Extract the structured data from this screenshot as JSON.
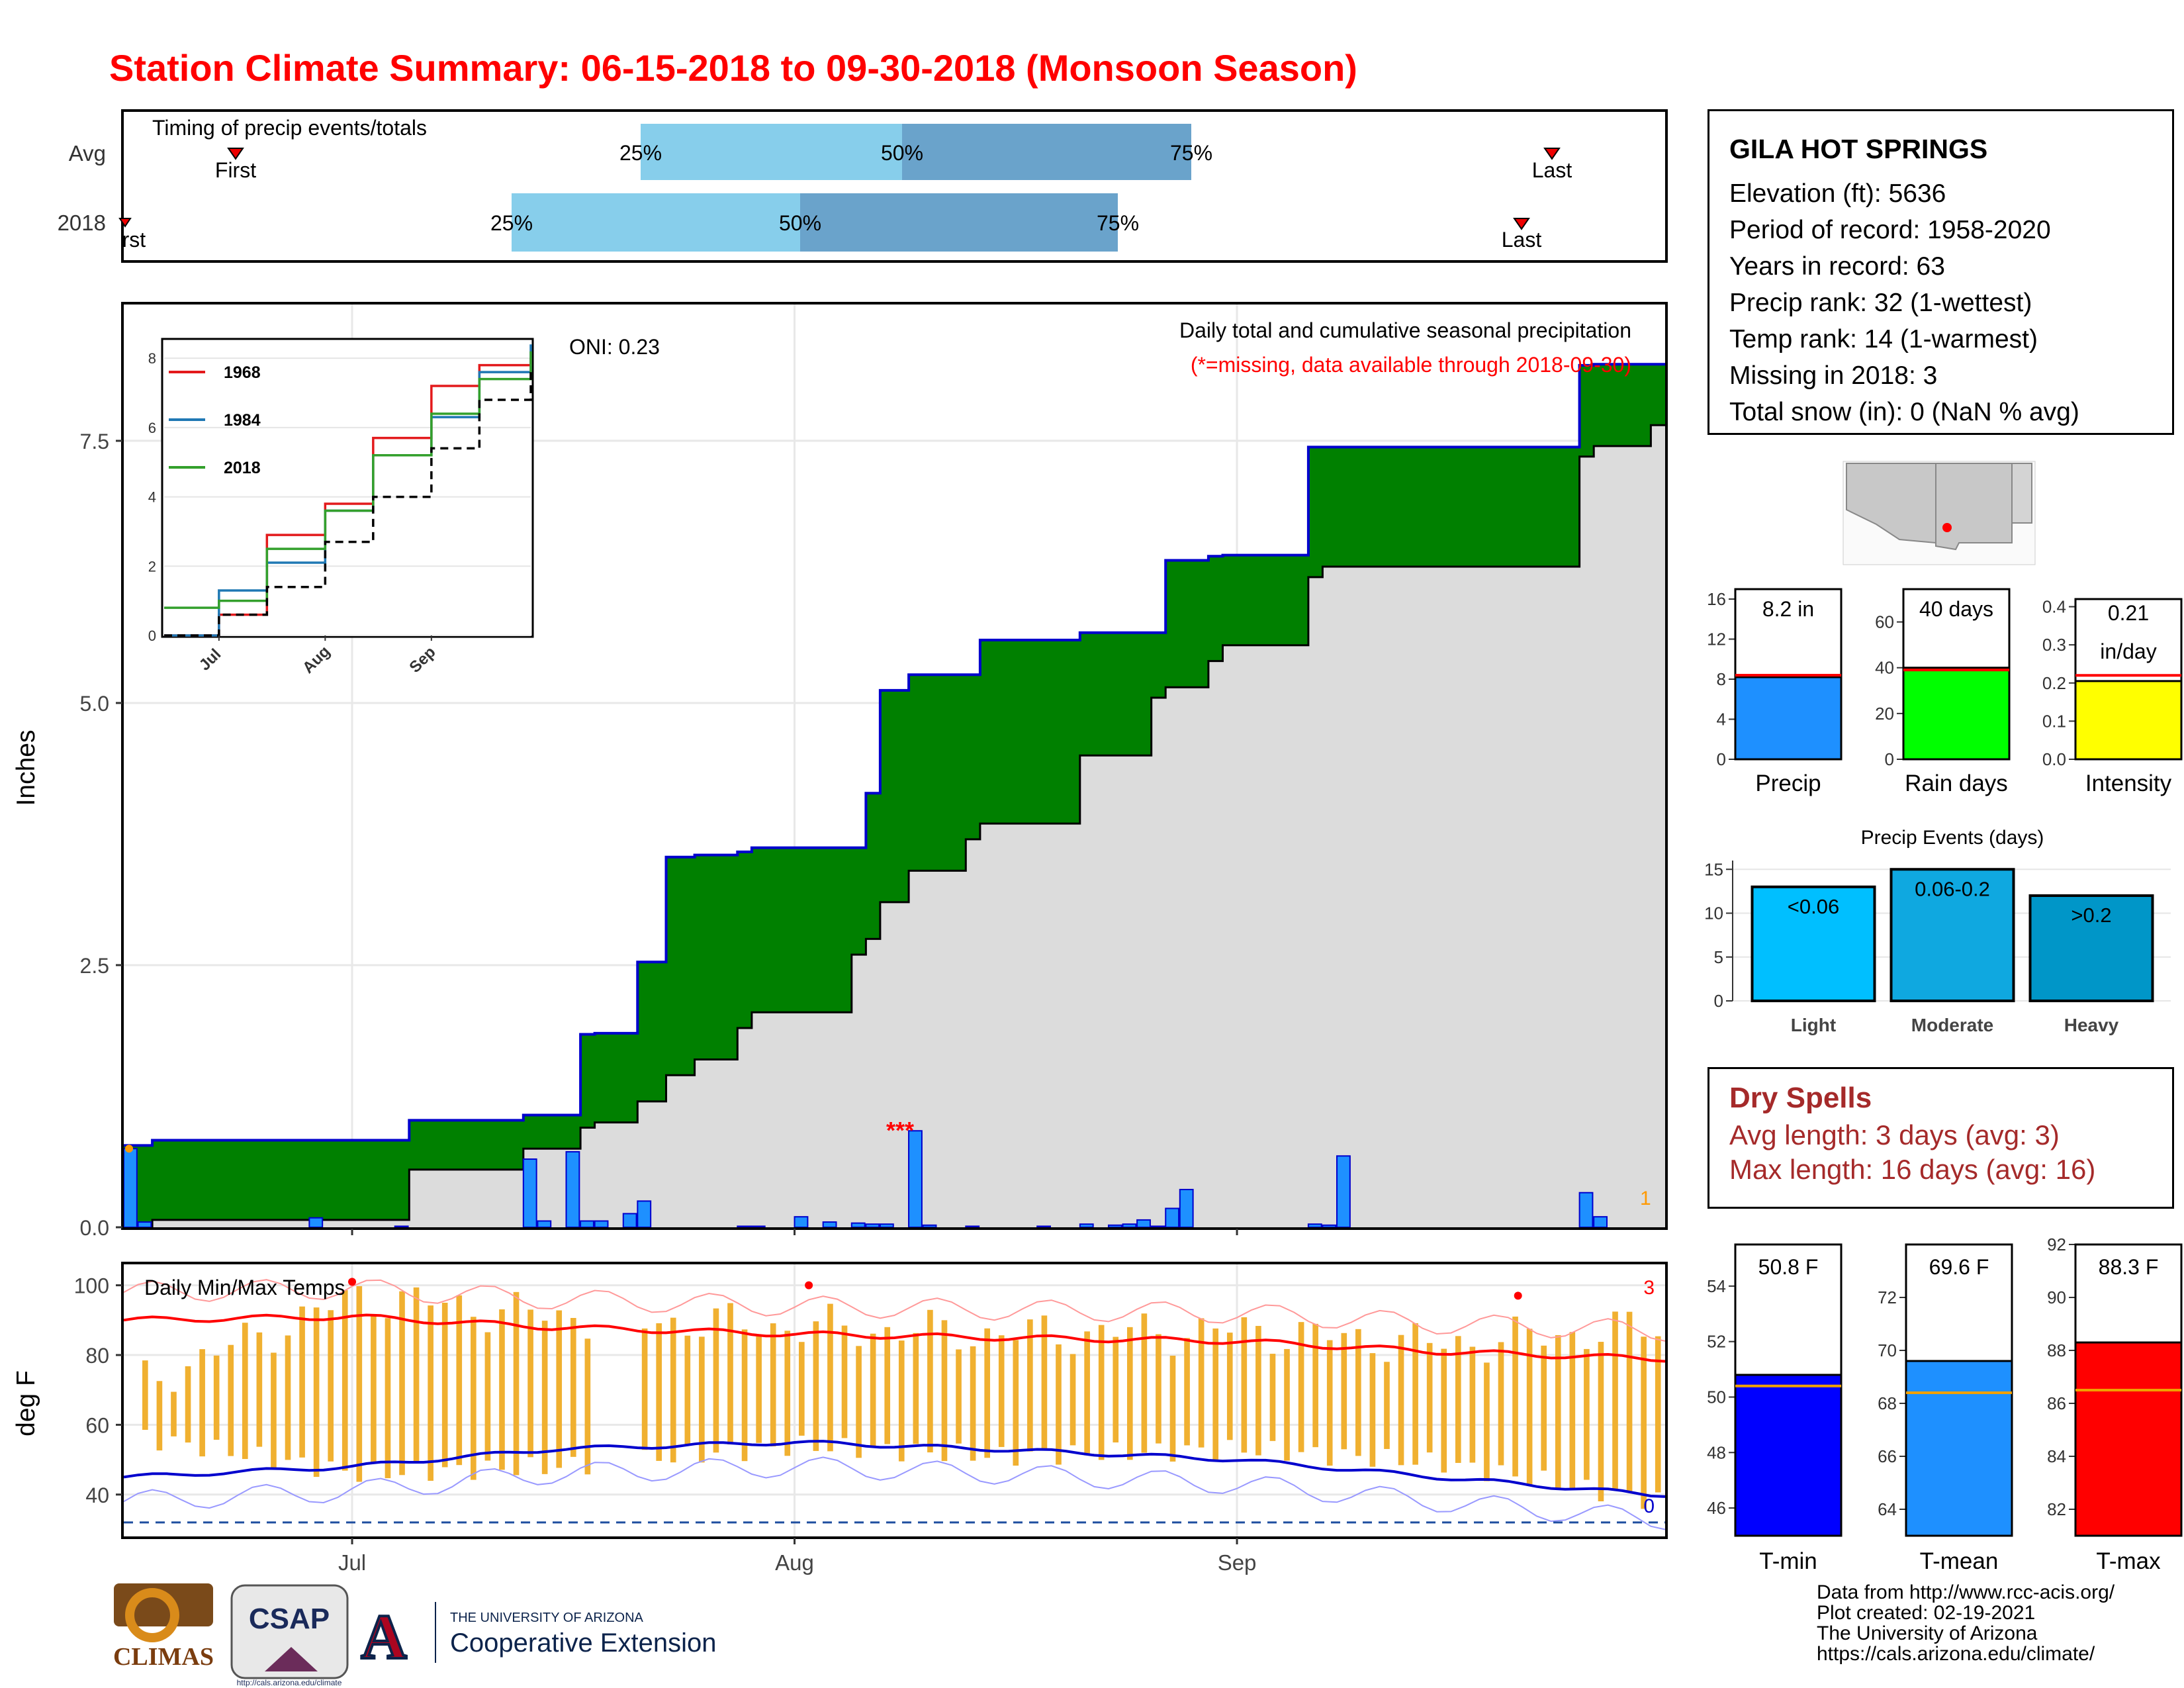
{
  "title": "Station Climate Summary: 06-15-2018 to 09-30-2018 (Monsoon Season)",
  "timing": {
    "label": "Timing of precip events/totals",
    "rows": [
      {
        "name": "Avg",
        "first_label": "First",
        "last_label": "Last",
        "q25": "25%",
        "q50": "50%",
        "q75": "75%"
      },
      {
        "name": "2018",
        "first_label": "First",
        "last_label": "Last",
        "q25": "25%",
        "q50": "50%",
        "q75": "75%"
      }
    ]
  },
  "precip_panel": {
    "oni": "ONI: 0.23",
    "caption": "Daily total and cumulative seasonal precipitation",
    "missing_note": "(*=missing, data available through 2018-09-30)",
    "missing_marks": "***",
    "count_label": "1",
    "ylabel": "Inches",
    "inset_legend": [
      {
        "name": "1968",
        "color": "#e31a1c"
      },
      {
        "name": "1984",
        "color": "#1f78b4"
      },
      {
        "name": "2018",
        "color": "#33a02c"
      }
    ]
  },
  "temp_panel": {
    "label": "Daily Min/Max Temps",
    "ylabel": "deg F",
    "count_high": "3",
    "count_low": "0"
  },
  "x_months": [
    "Jul",
    "Aug",
    "Sep"
  ],
  "station": {
    "name": "GILA HOT SPRINGS",
    "lines": [
      "Elevation (ft): 5636",
      "Period of record: 1958-2020",
      "Years in record: 63",
      "Precip rank: 32 (1-wettest)",
      "Temp rank: 14 (1-warmest)",
      "Missing in 2018: 3",
      "Total snow (in): 0 (NaN % avg)"
    ]
  },
  "summary_bars": [
    {
      "label": "Precip",
      "value_label": "8.2 in",
      "value": 8.2,
      "avg": 8.4,
      "ymax": 16,
      "ticks": [
        "0",
        "4",
        "8",
        "12",
        "16"
      ],
      "color": "#1e90ff"
    },
    {
      "label": "Rain days",
      "value_label": "40 days",
      "value": 40,
      "avg": 39,
      "ymax": 70,
      "ticks": [
        "0",
        "20",
        "40",
        "60"
      ],
      "color": "#00ff00"
    },
    {
      "label": "Intensity",
      "value_label": "0.21 in/day",
      "value_line1": "0.21",
      "value_line2": "in/day",
      "value": 0.205,
      "avg": 0.22,
      "ymax": 0.42,
      "ticks": [
        "0.0",
        "0.1",
        "0.2",
        "0.3",
        "0.4"
      ],
      "color": "#ffff00"
    }
  ],
  "precip_events": {
    "title": "Precip Events (days)",
    "ticks": [
      "0",
      "5",
      "10",
      "15"
    ],
    "bars": [
      {
        "label": "Light",
        "range": "<0.06",
        "value": 13,
        "color": "#00bfff"
      },
      {
        "label": "Moderate",
        "range": "0.06-0.2",
        "value": 15,
        "color": "#0fa8e0"
      },
      {
        "label": "Heavy",
        "range": ">0.2",
        "value": 12,
        "color": "#0096c8"
      }
    ]
  },
  "dry_spells": {
    "title": "Dry Spells",
    "avg": "Avg length: 3 days (avg: 3)",
    "max": "Max length: 16 days (avg: 16)"
  },
  "temp_bars": [
    {
      "label": "T-min",
      "value_label": "50.8 F",
      "value": 50.8,
      "avg": 50.4,
      "ymin": 45,
      "ymax": 55.5,
      "ticks": [
        "46",
        "48",
        "50",
        "52",
        "54"
      ],
      "tick_vals": [
        46,
        48,
        50,
        52,
        54
      ],
      "color": "#0000ff"
    },
    {
      "label": "T-mean",
      "value_label": "69.6 F",
      "value": 69.6,
      "avg": 68.4,
      "ymin": 63,
      "ymax": 74,
      "ticks": [
        "64",
        "66",
        "68",
        "70",
        "72"
      ],
      "tick_vals": [
        64,
        66,
        68,
        70,
        72
      ],
      "color": "#1e90ff"
    },
    {
      "label": "T-max",
      "value_label": "88.3 F",
      "value": 88.3,
      "avg": 86.5,
      "ymin": 81,
      "ymax": 92,
      "ticks": [
        "82",
        "84",
        "86",
        "88",
        "90",
        "92"
      ],
      "tick_vals": [
        82,
        84,
        86,
        88,
        90,
        92
      ],
      "color": "#ff0000"
    }
  ],
  "credits": [
    "Data from http://www.rcc-acis.org/",
    "Plot created: 02-19-2021",
    "The University of Arizona",
    "https://cals.arizona.edu/climate/"
  ],
  "logos": {
    "climas": "CLIMAS",
    "csap": "CSAP",
    "csap_url": "http://cals.arizona.edu/climate",
    "ua_line1": "THE UNIVERSITY OF ARIZONA",
    "ua_line2": "Cooperative Extension"
  },
  "chart_data": [
    {
      "type": "area",
      "title": "Daily total and cumulative seasonal precipitation",
      "ylabel": "Inches",
      "ylim": [
        0,
        8.8
      ],
      "x": [
        "06-15",
        "06-17",
        "07-05",
        "07-13",
        "07-17",
        "07-18",
        "07-21",
        "07-23",
        "07-25",
        "07-28",
        "07-29",
        "08-05",
        "08-06",
        "08-07",
        "08-09",
        "08-13",
        "08-14",
        "08-21",
        "08-26",
        "08-27",
        "08-30",
        "08-31",
        "09-06",
        "09-07",
        "09-25",
        "09-26",
        "09-30"
      ],
      "series": [
        {
          "name": "2018 cumulative",
          "values": [
            0.78,
            0.83,
            1.02,
            1.07,
            1.84,
            1.85,
            2.53,
            3.53,
            3.55,
            3.58,
            3.62,
            3.62,
            4.14,
            5.12,
            5.27,
            5.27,
            5.6,
            5.67,
            5.67,
            6.36,
            6.4,
            6.41,
            7.44,
            7.44,
            8.22,
            8.23,
            8.23
          ]
        },
        {
          "name": "Average cumulative",
          "values": [
            0.0,
            0.07,
            0.55,
            0.75,
            0.95,
            1.0,
            1.2,
            1.45,
            1.6,
            1.9,
            2.05,
            2.6,
            2.75,
            3.1,
            3.4,
            3.7,
            3.85,
            4.5,
            5.05,
            5.15,
            5.4,
            5.55,
            6.2,
            6.3,
            7.35,
            7.45,
            7.65
          ]
        }
      ]
    },
    {
      "type": "bar",
      "title": "Daily precipitation",
      "x": [
        "06-15",
        "06-16",
        "06-28",
        "07-04",
        "07-13",
        "07-14",
        "07-16",
        "07-17",
        "07-18",
        "07-20",
        "07-21",
        "07-28",
        "07-29",
        "08-01",
        "08-03",
        "08-05",
        "08-06",
        "08-07",
        "08-09",
        "08-10",
        "08-13",
        "08-18",
        "08-21",
        "08-23",
        "08-24",
        "08-25",
        "08-26",
        "08-27",
        "08-28",
        "09-06",
        "09-07",
        "09-08",
        "09-25",
        "09-26"
      ],
      "values": [
        0.75,
        0.05,
        0.09,
        0.01,
        0.65,
        0.06,
        0.72,
        0.06,
        0.06,
        0.13,
        0.25,
        0.01,
        0.01,
        0.1,
        0.05,
        0.04,
        0.03,
        0.03,
        0.92,
        0.02,
        0.01,
        0.01,
        0.03,
        0.02,
        0.03,
        0.07,
        0.01,
        0.18,
        0.36,
        0.03,
        0.02,
        0.68,
        0.33,
        0.1
      ]
    },
    {
      "type": "line",
      "title": "Inset cumulative precipitation",
      "ylim": [
        0,
        8.5
      ],
      "x": [
        "06-15",
        "07-01",
        "07-15",
        "08-01",
        "08-15",
        "09-01",
        "09-15",
        "09-30"
      ],
      "series": [
        {
          "name": "1968",
          "values": [
            0.0,
            0.6,
            2.9,
            3.8,
            5.7,
            7.2,
            7.8,
            8.0
          ]
        },
        {
          "name": "1984",
          "values": [
            0.0,
            1.3,
            2.1,
            3.6,
            5.2,
            6.3,
            7.6,
            8.4
          ]
        },
        {
          "name": "2018",
          "values": [
            0.8,
            1.0,
            2.5,
            3.6,
            5.2,
            6.4,
            7.4,
            8.2
          ]
        },
        {
          "name": "Average",
          "values": [
            0.0,
            0.6,
            1.4,
            2.7,
            4.0,
            5.4,
            6.8,
            7.6
          ]
        }
      ]
    },
    {
      "type": "bar",
      "title": "Daily Min/Max Temps",
      "ylabel": "deg F",
      "ylim": [
        28,
        106
      ],
      "x": [
        "06-15",
        "07-01",
        "07-15",
        "08-01",
        "08-15",
        "09-01",
        "09-15",
        "09-30"
      ],
      "series": [
        {
          "name": "Daily max",
          "values": [
            71,
            97,
            91,
            88,
            86,
            87,
            83,
            88
          ]
        },
        {
          "name": "Daily min",
          "values": [
            57,
            46,
            48,
            54,
            51,
            53,
            49,
            38
          ]
        },
        {
          "name": "Avg max",
          "values": [
            90,
            91,
            88,
            86,
            85,
            84,
            81,
            79
          ]
        },
        {
          "name": "Avg min",
          "values": [
            45,
            48,
            53,
            55,
            53,
            50,
            45,
            40
          ]
        }
      ]
    },
    {
      "type": "bar",
      "title": "Season summary",
      "categories": [
        "Precip",
        "Rain days",
        "Intensity",
        "T-min",
        "T-mean",
        "T-max"
      ],
      "values": [
        8.2,
        40,
        0.21,
        50.8,
        69.6,
        88.3
      ]
    },
    {
      "type": "bar",
      "title": "Precip Events (days)",
      "categories": [
        "Light",
        "Moderate",
        "Heavy"
      ],
      "values": [
        13,
        15,
        12
      ]
    }
  ]
}
